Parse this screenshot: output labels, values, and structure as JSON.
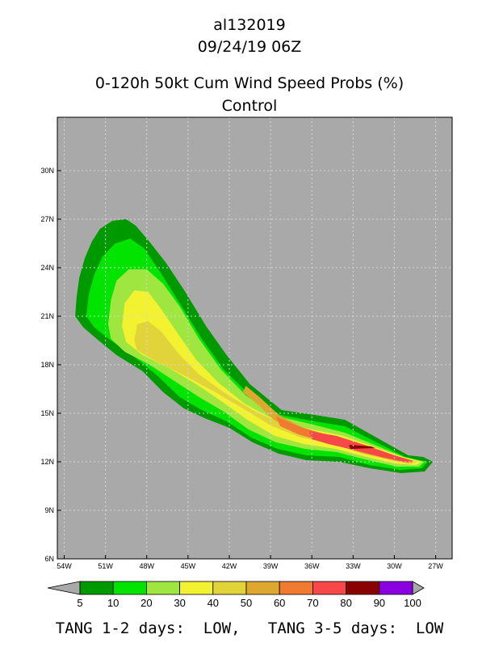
{
  "header": {
    "storm_id": "al132019",
    "datetime": "09/24/19 06Z",
    "title": "0-120h 50kt Cum Wind Speed Probs (%)",
    "subtitle": "Control"
  },
  "footer": {
    "text": "TANG 1-2 days:  LOW,   TANG 3-5 days:  LOW"
  },
  "chart_data": {
    "type": "heatmap",
    "title": "0-120h 50kt Cum Wind Speed Probs (%)",
    "subtitle": "Control",
    "x_ticks": [
      "54W",
      "51W",
      "48W",
      "45W",
      "42W",
      "39W",
      "36W",
      "33W",
      "30W",
      "27W"
    ],
    "x_tick_values": [
      -54,
      -51,
      -48,
      -45,
      -42,
      -39,
      -36,
      -33,
      -30,
      -27
    ],
    "y_ticks": [
      "6N",
      "9N",
      "12N",
      "15N",
      "18N",
      "21N",
      "24N",
      "27N",
      "30N"
    ],
    "y_tick_values": [
      6,
      9,
      12,
      15,
      18,
      21,
      24,
      27,
      30
    ],
    "xlim": [
      -54.5,
      -25.8
    ],
    "ylim": [
      6,
      33.3
    ],
    "background_color": "#a9a9a9",
    "grid": true,
    "levels": [
      {
        "min": 5,
        "max": 10,
        "color": "#009a00",
        "shape": [
          [
            -53.2,
            21
          ],
          [
            -53.1,
            22.2
          ],
          [
            -52.9,
            23.4
          ],
          [
            -52.5,
            24.6
          ],
          [
            -52.0,
            25.6
          ],
          [
            -51.4,
            26.4
          ],
          [
            -50.5,
            26.9
          ],
          [
            -49.5,
            27.0
          ],
          [
            -48.8,
            26.6
          ],
          [
            -47.8,
            25.6
          ],
          [
            -46.6,
            24.3
          ],
          [
            -45.2,
            22.5
          ],
          [
            -43.7,
            20.4
          ],
          [
            -42.2,
            18.6
          ],
          [
            -40.5,
            16.8
          ],
          [
            -38.2,
            15.2
          ],
          [
            -35.8,
            14.9
          ],
          [
            -33.6,
            14.6
          ],
          [
            -31.3,
            13.5
          ],
          [
            -29.0,
            12.4
          ],
          [
            -27.9,
            12.3
          ],
          [
            -27.2,
            12.0
          ],
          [
            -27.8,
            11.4
          ],
          [
            -29.5,
            11.3
          ],
          [
            -31.8,
            11.6
          ],
          [
            -34.0,
            12.0
          ],
          [
            -36.4,
            12.1
          ],
          [
            -38.4,
            12.5
          ],
          [
            -40.3,
            13.2
          ],
          [
            -42.0,
            14.1
          ],
          [
            -43.8,
            14.7
          ],
          [
            -45.3,
            15.3
          ],
          [
            -46.8,
            16.3
          ],
          [
            -48.3,
            17.6
          ],
          [
            -50.2,
            18.6
          ],
          [
            -51.5,
            19.5
          ],
          [
            -52.6,
            20.3
          ]
        ]
      },
      {
        "min": 10,
        "max": 20,
        "color": "#00e400",
        "shape": [
          [
            -52.4,
            21
          ],
          [
            -52.2,
            22.4
          ],
          [
            -51.8,
            23.6
          ],
          [
            -51.2,
            24.7
          ],
          [
            -50.3,
            25.5
          ],
          [
            -49.2,
            25.8
          ],
          [
            -48.2,
            25.2
          ],
          [
            -47.0,
            23.7
          ],
          [
            -45.6,
            21.8
          ],
          [
            -44.0,
            19.6
          ],
          [
            -42.4,
            17.7
          ],
          [
            -40.6,
            16.2
          ],
          [
            -38.3,
            14.9
          ],
          [
            -35.8,
            14.5
          ],
          [
            -33.6,
            14.2
          ],
          [
            -31.3,
            13.2
          ],
          [
            -29.2,
            12.3
          ],
          [
            -27.6,
            12.0
          ],
          [
            -28.0,
            11.6
          ],
          [
            -29.6,
            11.5
          ],
          [
            -31.8,
            11.8
          ],
          [
            -34.0,
            12.3
          ],
          [
            -36.4,
            12.4
          ],
          [
            -38.5,
            12.8
          ],
          [
            -40.4,
            13.5
          ],
          [
            -42.2,
            14.5
          ],
          [
            -44.0,
            15.2
          ],
          [
            -45.6,
            16.0
          ],
          [
            -47.2,
            17.3
          ],
          [
            -48.9,
            18.5
          ],
          [
            -50.6,
            19.5
          ],
          [
            -51.8,
            20.3
          ]
        ]
      },
      {
        "min": 20,
        "max": 30,
        "color": "#9fe640",
        "shape": [
          [
            -50.8,
            20.5
          ],
          [
            -50.6,
            22.0
          ],
          [
            -50.2,
            23.2
          ],
          [
            -49.3,
            23.9
          ],
          [
            -48.0,
            23.9
          ],
          [
            -46.8,
            23.0
          ],
          [
            -45.6,
            21.6
          ],
          [
            -44.2,
            19.6
          ],
          [
            -42.6,
            17.7
          ],
          [
            -40.8,
            16.1
          ],
          [
            -38.4,
            14.8
          ],
          [
            -35.9,
            14.3
          ],
          [
            -33.6,
            13.8
          ],
          [
            -31.3,
            13.0
          ],
          [
            -29.3,
            12.3
          ],
          [
            -27.8,
            12.0
          ],
          [
            -28.2,
            11.7
          ],
          [
            -29.8,
            11.7
          ],
          [
            -31.9,
            12.1
          ],
          [
            -34.2,
            12.6
          ],
          [
            -36.5,
            12.8
          ],
          [
            -38.6,
            13.2
          ],
          [
            -40.6,
            14.0
          ],
          [
            -42.4,
            15.1
          ],
          [
            -44.2,
            16.0
          ],
          [
            -46.0,
            17.0
          ],
          [
            -47.8,
            18.0
          ],
          [
            -49.6,
            18.8
          ],
          [
            -50.6,
            19.6
          ]
        ]
      },
      {
        "min": 30,
        "max": 40,
        "color": "#f2f230",
        "shape": [
          [
            -49.8,
            20.4
          ],
          [
            -49.6,
            21.8
          ],
          [
            -48.9,
            22.6
          ],
          [
            -47.9,
            22.5
          ],
          [
            -47.0,
            21.5
          ],
          [
            -45.8,
            20.0
          ],
          [
            -44.4,
            18.3
          ],
          [
            -42.8,
            16.9
          ],
          [
            -40.9,
            15.6
          ],
          [
            -38.5,
            14.5
          ],
          [
            -36.0,
            14.0
          ],
          [
            -33.7,
            13.6
          ],
          [
            -31.4,
            12.9
          ],
          [
            -29.4,
            12.3
          ],
          [
            -28.0,
            12.0
          ],
          [
            -28.4,
            11.8
          ],
          [
            -30.0,
            11.9
          ],
          [
            -32.0,
            12.3
          ],
          [
            -34.3,
            12.8
          ],
          [
            -36.6,
            13.1
          ],
          [
            -38.7,
            13.6
          ],
          [
            -40.7,
            14.6
          ],
          [
            -42.5,
            15.7
          ],
          [
            -44.4,
            16.8
          ],
          [
            -46.4,
            17.8
          ],
          [
            -48.3,
            18.6
          ],
          [
            -49.5,
            19.4
          ]
        ]
      },
      {
        "min": 40,
        "max": 50,
        "color": "#e0d43a",
        "shape": [
          [
            -48.9,
            19.5
          ],
          [
            -48.7,
            20.5
          ],
          [
            -47.9,
            20.7
          ],
          [
            -46.9,
            20.0
          ],
          [
            -45.7,
            18.7
          ],
          [
            -44.2,
            17.4
          ],
          [
            -42.4,
            16.3
          ],
          [
            -40.3,
            15.2
          ],
          [
            -38.1,
            14.3
          ],
          [
            -35.9,
            13.8
          ],
          [
            -33.6,
            13.4
          ],
          [
            -31.5,
            12.8
          ],
          [
            -29.6,
            12.3
          ],
          [
            -28.3,
            12.0
          ],
          [
            -28.8,
            11.9
          ],
          [
            -30.3,
            12.1
          ],
          [
            -32.3,
            12.5
          ],
          [
            -34.5,
            13.1
          ],
          [
            -36.8,
            13.5
          ],
          [
            -38.9,
            14.2
          ],
          [
            -41.0,
            15.3
          ],
          [
            -43.0,
            16.3
          ],
          [
            -45.2,
            17.3
          ],
          [
            -47.3,
            18.2
          ],
          [
            -48.7,
            18.9
          ]
        ]
      },
      {
        "min": 50,
        "max": 60,
        "color": "#dea72f",
        "shape": [
          [
            -40.8,
            16.7
          ],
          [
            -39.8,
            16.0
          ],
          [
            -38.4,
            14.9
          ],
          [
            -36.4,
            14.0
          ],
          [
            -34.0,
            13.4
          ],
          [
            -31.8,
            12.8
          ],
          [
            -29.8,
            12.3
          ],
          [
            -28.5,
            12.0
          ],
          [
            -29.0,
            11.9
          ],
          [
            -30.6,
            12.2
          ],
          [
            -32.6,
            12.6
          ],
          [
            -34.8,
            13.2
          ],
          [
            -37.0,
            13.8
          ],
          [
            -38.8,
            14.6
          ],
          [
            -40.0,
            15.6
          ],
          [
            -41.0,
            16.3
          ]
        ]
      },
      {
        "min": 60,
        "max": 70,
        "color": "#f07a30",
        "shape": [
          [
            -38.6,
            14.8
          ],
          [
            -37.0,
            14.2
          ],
          [
            -34.6,
            13.6
          ],
          [
            -32.2,
            12.9
          ],
          [
            -30.0,
            12.3
          ],
          [
            -28.6,
            12.0
          ],
          [
            -29.2,
            11.95
          ],
          [
            -30.8,
            12.25
          ],
          [
            -32.8,
            12.7
          ],
          [
            -35.0,
            13.2
          ],
          [
            -37.0,
            13.7
          ],
          [
            -38.3,
            14.2
          ]
        ]
      },
      {
        "min": 70,
        "max": 80,
        "color": "#f64848",
        "shape": [
          [
            -36.2,
            13.9
          ],
          [
            -34.2,
            13.6
          ],
          [
            -32.0,
            13.0
          ],
          [
            -30.0,
            12.4
          ],
          [
            -28.6,
            12.05
          ],
          [
            -29.2,
            12.0
          ],
          [
            -30.9,
            12.3
          ],
          [
            -32.8,
            12.7
          ],
          [
            -34.8,
            13.1
          ],
          [
            -36.0,
            13.4
          ]
        ]
      },
      {
        "min": 80,
        "max": 90,
        "color": "#8b0000",
        "shape": [
          [
            -33.3,
            13.05
          ],
          [
            -31.7,
            12.95
          ],
          [
            -31.4,
            12.85
          ],
          [
            -33.2,
            12.8
          ]
        ]
      },
      {
        "min": 90,
        "max": 100,
        "color": "#8b00e0",
        "shape": []
      }
    ],
    "colorbar": {
      "labels": [
        "5",
        "10",
        "20",
        "30",
        "40",
        "50",
        "60",
        "70",
        "80",
        "90",
        "100"
      ],
      "colors": [
        "#009a00",
        "#00e400",
        "#9fe640",
        "#f2f230",
        "#e0d43a",
        "#dea72f",
        "#f07a30",
        "#f64848",
        "#8b0000",
        "#8b00e0"
      ],
      "extend_color": "#a9a9a9"
    }
  }
}
